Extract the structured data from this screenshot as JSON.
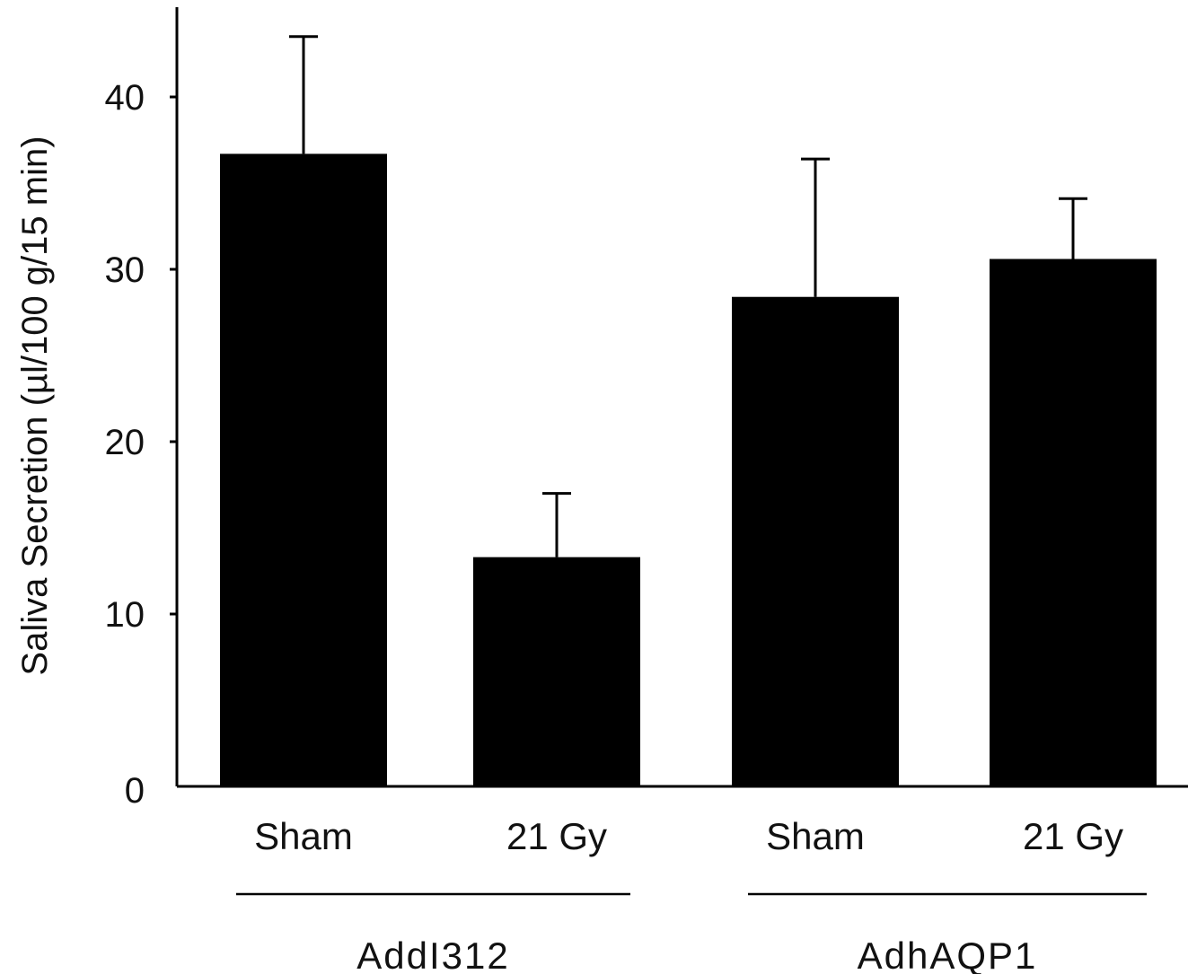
{
  "chart_data": {
    "type": "bar",
    "title": "",
    "xlabel": "",
    "ylabel": "Saliva Secretion (µl/100 g/15 min)",
    "ylim": [
      0,
      45
    ],
    "yticks": [
      0,
      10,
      20,
      30,
      40
    ],
    "grid": false,
    "legend": "none",
    "bar_color": "#000000",
    "categories": [
      "Sham",
      "21 Gy",
      "Sham",
      "21 Gy"
    ],
    "values": [
      36.7,
      13.3,
      28.4,
      30.6
    ],
    "errors": [
      6.8,
      3.7,
      8.0,
      3.5
    ],
    "groups": [
      {
        "label": "AddI312",
        "categories": [
          0,
          1
        ]
      },
      {
        "label": "AdhAQP1",
        "categories": [
          2,
          3
        ]
      }
    ]
  }
}
